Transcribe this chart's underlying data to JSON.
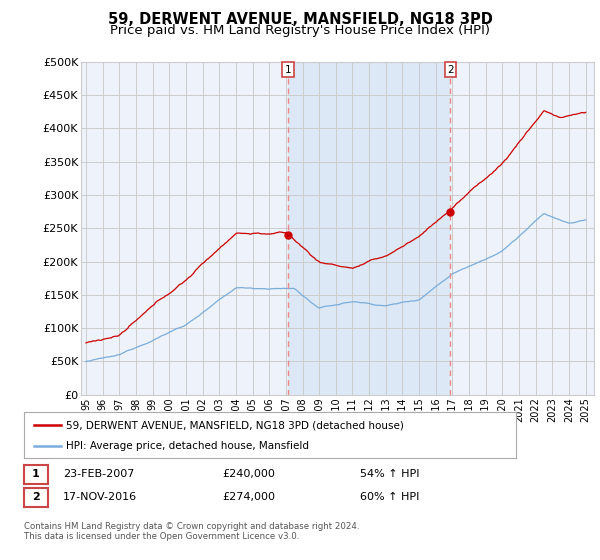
{
  "title": "59, DERWENT AVENUE, MANSFIELD, NG18 3PD",
  "subtitle": "Price paid vs. HM Land Registry's House Price Index (HPI)",
  "ylabel_ticks": [
    "£0",
    "£50K",
    "£100K",
    "£150K",
    "£200K",
    "£250K",
    "£300K",
    "£350K",
    "£400K",
    "£450K",
    "£500K"
  ],
  "ytick_vals": [
    0,
    50000,
    100000,
    150000,
    200000,
    250000,
    300000,
    350000,
    400000,
    450000,
    500000
  ],
  "xlim_start": 1994.7,
  "xlim_end": 2025.5,
  "ylim": [
    0,
    500000
  ],
  "red_line_color": "#cc0000",
  "blue_line_color": "#7aaddb",
  "vline_color": "#ee8888",
  "shade_color": "#dce8f5",
  "grid_color": "#cccccc",
  "background_color": "#ffffff",
  "plot_bg_color": "#eef2fa",
  "marker1_x": 2007.12,
  "marker1_y": 240000,
  "marker2_x": 2016.88,
  "marker2_y": 274000,
  "legend_label1": "59, DERWENT AVENUE, MANSFIELD, NG18 3PD (detached house)",
  "legend_label2": "HPI: Average price, detached house, Mansfield",
  "annotation1_num": "1",
  "annotation2_num": "2",
  "table_row1": [
    "1",
    "23-FEB-2007",
    "£240,000",
    "54% ↑ HPI"
  ],
  "table_row2": [
    "2",
    "17-NOV-2016",
    "£274,000",
    "60% ↑ HPI"
  ],
  "footer": "Contains HM Land Registry data © Crown copyright and database right 2024.\nThis data is licensed under the Open Government Licence v3.0.",
  "title_fontsize": 10.5,
  "subtitle_fontsize": 9.5
}
